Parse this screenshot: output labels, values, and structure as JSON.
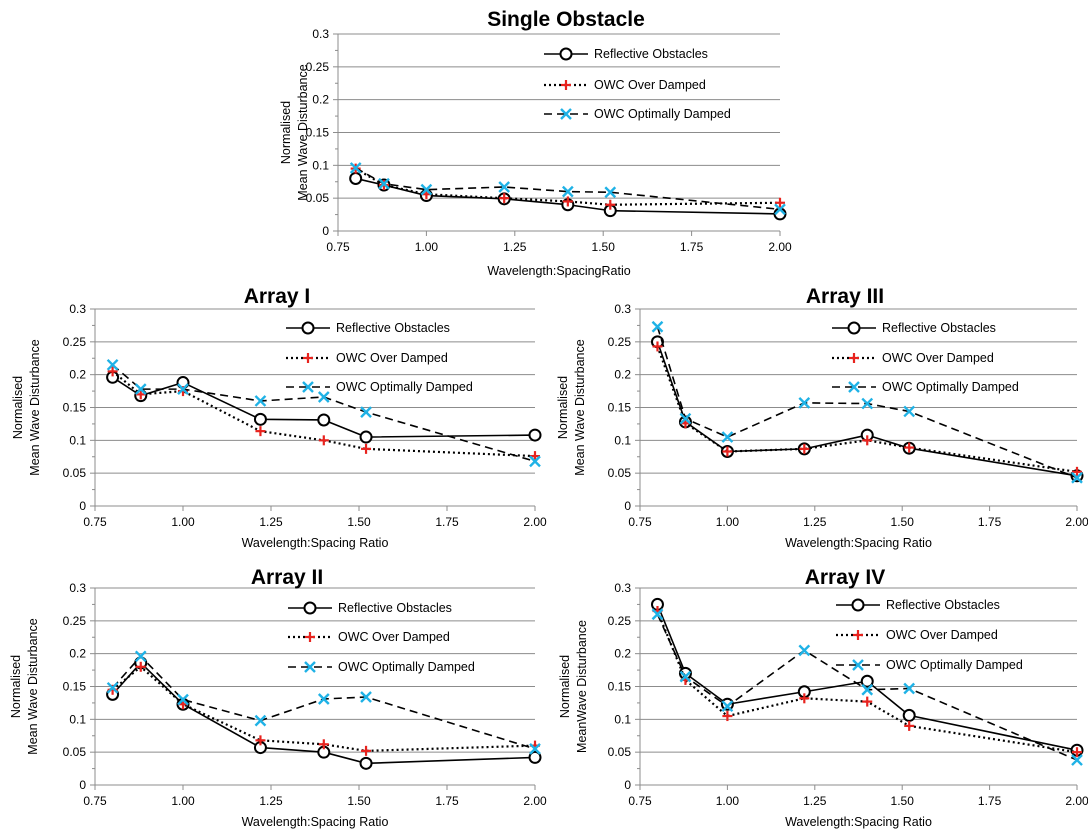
{
  "chart_data": [
    {
      "type": "line",
      "title": "Single Obstacle",
      "xlabel": "Wavelength:SpacingRatio",
      "ylabel": [
        "Normalised",
        "Mean Wave Disturbance"
      ],
      "xlim": [
        0.75,
        2.0
      ],
      "ylim": [
        0,
        0.3
      ],
      "xticks": [
        "0.75",
        "1.00",
        "1.25",
        "1.50",
        "1.75",
        "2.00"
      ],
      "yticks": [
        "0",
        "0.05",
        "0.1",
        "0.15",
        "0.2",
        "0.25",
        "0.3"
      ],
      "grid": "horizontal",
      "legend_position": "top-right",
      "series": [
        {
          "name": "Reflective Obstacles",
          "x": [
            0.8,
            0.88,
            1.0,
            1.22,
            1.4,
            1.52,
            2.0
          ],
          "values": [
            0.08,
            0.07,
            0.054,
            0.049,
            0.04,
            0.031,
            0.026
          ]
        },
        {
          "name": "OWC Over Damped",
          "x": [
            0.8,
            0.88,
            1.0,
            1.22,
            1.4,
            1.52,
            2.0
          ],
          "values": [
            0.095,
            0.07,
            0.056,
            0.05,
            0.045,
            0.04,
            0.043
          ]
        },
        {
          "name": "OWC Optimally Damped",
          "x": [
            0.8,
            0.88,
            1.0,
            1.22,
            1.4,
            1.52,
            2.0
          ],
          "values": [
            0.096,
            0.072,
            0.063,
            0.067,
            0.06,
            0.059,
            0.033
          ]
        }
      ]
    },
    {
      "type": "line",
      "title": "Array I",
      "xlabel": "Wavelength:Spacing Ratio",
      "ylabel": [
        "Normalised",
        "Mean Wave Disturbance"
      ],
      "xlim": [
        0.75,
        2.0
      ],
      "ylim": [
        0,
        0.3
      ],
      "xticks": [
        "0.75",
        "1.00",
        "1.25",
        "1.50",
        "1.75",
        "2.00"
      ],
      "yticks": [
        "0",
        "0.05",
        "0.1",
        "0.15",
        "0.2",
        "0.25",
        "0.3"
      ],
      "grid": "horizontal",
      "legend_position": "top-right",
      "series": [
        {
          "name": "Reflective Obstacles",
          "x": [
            0.8,
            0.88,
            1.0,
            1.22,
            1.4,
            1.52,
            2.0
          ],
          "values": [
            0.196,
            0.168,
            0.188,
            0.132,
            0.131,
            0.105,
            0.108
          ]
        },
        {
          "name": "OWC Over Damped",
          "x": [
            0.8,
            0.88,
            1.0,
            1.22,
            1.4,
            1.52,
            2.0
          ],
          "values": [
            0.205,
            0.17,
            0.175,
            0.114,
            0.1,
            0.087,
            0.076
          ]
        },
        {
          "name": "OWC Optimally Damped",
          "x": [
            0.8,
            0.88,
            1.0,
            1.22,
            1.4,
            1.52,
            2.0
          ],
          "values": [
            0.215,
            0.178,
            0.178,
            0.16,
            0.166,
            0.143,
            0.068
          ]
        }
      ]
    },
    {
      "type": "line",
      "title": "Array III",
      "xlabel": "Wavelength:Spacing Ratio",
      "ylabel": [
        "Normalised",
        "Mean Wave Disturbance"
      ],
      "xlim": [
        0.75,
        2.0
      ],
      "ylim": [
        0,
        0.3
      ],
      "xticks": [
        "0.75",
        "1.00",
        "1.25",
        "1.50",
        "1.75",
        "2.00"
      ],
      "yticks": [
        "0",
        "0.05",
        "0.1",
        "0.15",
        "0.2",
        "0.25",
        "0.3"
      ],
      "grid": "horizontal",
      "legend_position": "top-right",
      "series": [
        {
          "name": "Reflective Obstacles",
          "x": [
            0.8,
            0.88,
            1.0,
            1.22,
            1.4,
            1.52,
            2.0
          ],
          "values": [
            0.25,
            0.128,
            0.083,
            0.087,
            0.108,
            0.088,
            0.046
          ]
        },
        {
          "name": "OWC Over Damped",
          "x": [
            0.8,
            0.88,
            1.0,
            1.22,
            1.4,
            1.52,
            2.0
          ],
          "values": [
            0.243,
            0.126,
            0.083,
            0.087,
            0.1,
            0.089,
            0.052
          ]
        },
        {
          "name": "OWC Optimally Damped",
          "x": [
            0.8,
            0.88,
            1.0,
            1.22,
            1.4,
            1.52,
            2.0
          ],
          "values": [
            0.273,
            0.133,
            0.105,
            0.157,
            0.156,
            0.144,
            0.043
          ]
        }
      ]
    },
    {
      "type": "line",
      "title": "Array II",
      "xlabel": "Wavelength:Spacing Ratio",
      "ylabel": [
        "Normalised",
        "Mean Wave Disturbance"
      ],
      "xlim": [
        0.75,
        2.0
      ],
      "ylim": [
        0,
        0.3
      ],
      "xticks": [
        "0.75",
        "1.00",
        "1.25",
        "1.50",
        "1.75",
        "2.00"
      ],
      "yticks": [
        "0",
        "0.05",
        "0.1",
        "0.15",
        "0.2",
        "0.25",
        "0.3"
      ],
      "grid": "horizontal",
      "legend_position": "top-right",
      "series": [
        {
          "name": "Reflective Obstacles",
          "x": [
            0.8,
            0.88,
            1.0,
            1.22,
            1.4,
            1.52,
            2.0
          ],
          "values": [
            0.138,
            0.186,
            0.123,
            0.057,
            0.05,
            0.033,
            0.042
          ]
        },
        {
          "name": "OWC Over Damped",
          "x": [
            0.8,
            0.88,
            1.0,
            1.22,
            1.4,
            1.52,
            2.0
          ],
          "values": [
            0.145,
            0.18,
            0.123,
            0.068,
            0.062,
            0.052,
            0.06
          ]
        },
        {
          "name": "OWC Optimally Damped",
          "x": [
            0.8,
            0.88,
            1.0,
            1.22,
            1.4,
            1.52,
            2.0
          ],
          "values": [
            0.148,
            0.196,
            0.13,
            0.098,
            0.131,
            0.134,
            0.055
          ]
        }
      ]
    },
    {
      "type": "line",
      "title": "Array IV",
      "xlabel": "Wavelength:Spacing Ratio",
      "ylabel": [
        "Normalised",
        "MeanWave Disturbance"
      ],
      "xlim": [
        0.75,
        2.0
      ],
      "ylim": [
        0,
        0.3
      ],
      "xticks": [
        "0.75",
        "1.00",
        "1.25",
        "1.50",
        "1.75",
        "2.00"
      ],
      "yticks": [
        "0",
        "0.05",
        "0.1",
        "0.15",
        "0.2",
        "0.25",
        "0.3"
      ],
      "grid": "horizontal",
      "legend_position": "top-right",
      "series": [
        {
          "name": "Reflective Obstacles",
          "x": [
            0.8,
            0.88,
            1.0,
            1.22,
            1.4,
            1.52,
            2.0
          ],
          "values": [
            0.275,
            0.17,
            0.123,
            0.142,
            0.158,
            0.106,
            0.053
          ]
        },
        {
          "name": "OWC Over Damped",
          "x": [
            0.8,
            0.88,
            1.0,
            1.22,
            1.4,
            1.52,
            2.0
          ],
          "values": [
            0.265,
            0.16,
            0.105,
            0.132,
            0.127,
            0.09,
            0.05
          ]
        },
        {
          "name": "OWC Optimally Damped",
          "x": [
            0.8,
            0.88,
            1.0,
            1.22,
            1.4,
            1.52,
            2.0
          ],
          "values": [
            0.26,
            0.165,
            0.12,
            0.205,
            0.145,
            0.147,
            0.038
          ]
        }
      ]
    }
  ],
  "style": {
    "colors": {
      "reflective": "#000000",
      "overdamped_marker": "#e8231e",
      "optimal_marker": "#1fb2e6",
      "grid": "#8c8c8c",
      "axis": "#8c8c8c",
      "text": "#000000"
    }
  }
}
